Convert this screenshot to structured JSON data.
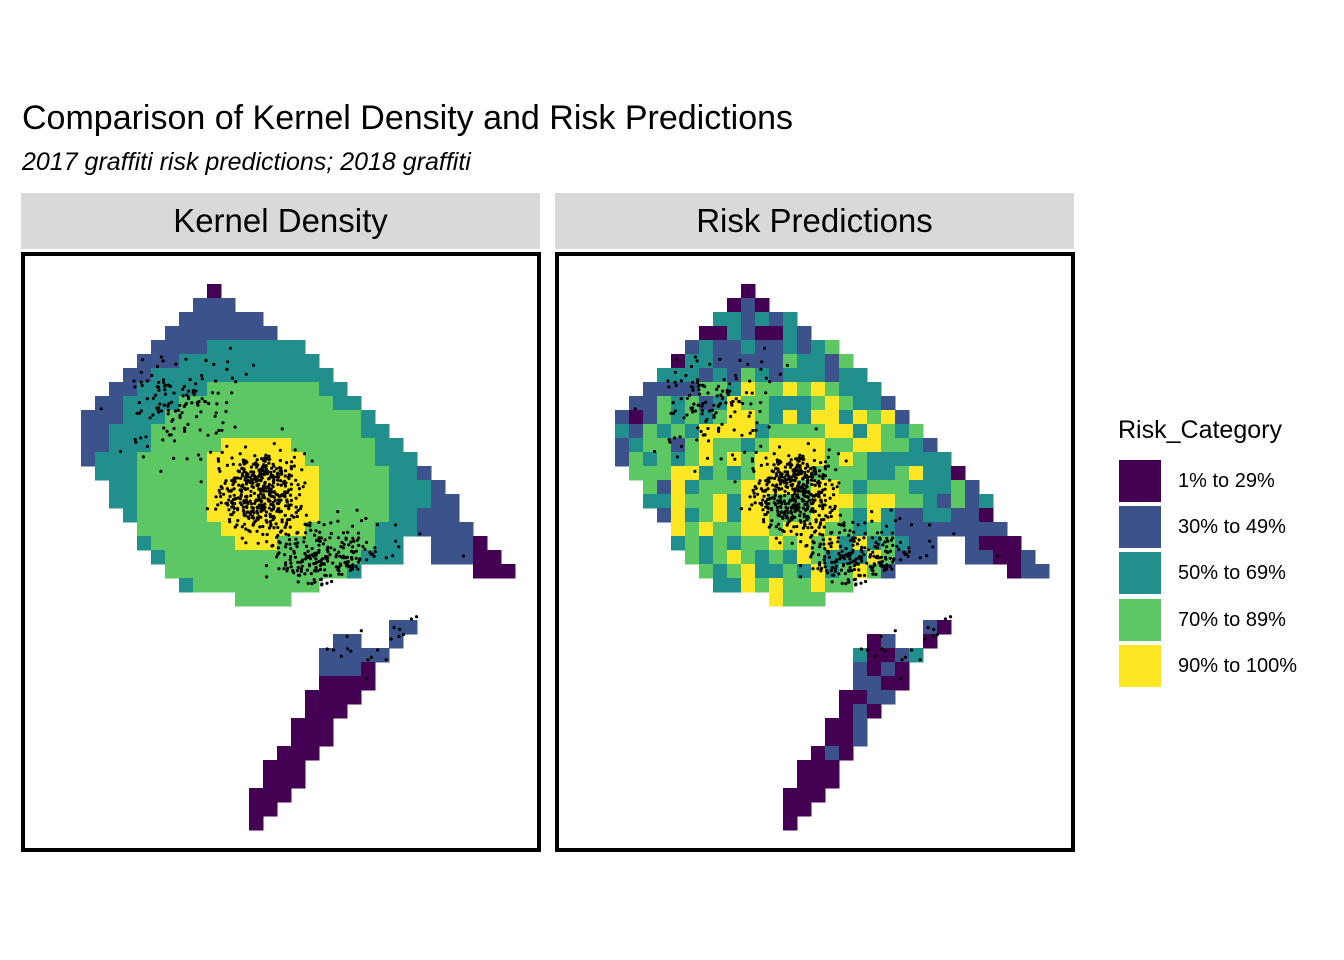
{
  "title": "Comparison of Kernel Density and Risk Predictions",
  "subtitle": "2017 graffiti risk predictions; 2018 graffiti",
  "panels": [
    {
      "label": "Kernel Density",
      "mode": "kernel"
    },
    {
      "label": "Risk Predictions",
      "mode": "risk"
    }
  ],
  "legend": {
    "title": "Risk_Category",
    "items": [
      {
        "label": "1% to 29%",
        "color": "#440154"
      },
      {
        "label": "30% to 49%",
        "color": "#3B528B"
      },
      {
        "label": "50% to 69%",
        "color": "#21908C"
      },
      {
        "label": "70% to 89%",
        "color": "#5DC863"
      },
      {
        "label": "90% to 100%",
        "color": "#FDE725"
      }
    ]
  },
  "point_color": "#000000"
}
